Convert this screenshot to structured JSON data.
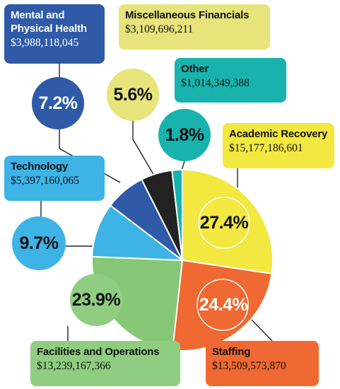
{
  "chart_data": {
    "type": "pie",
    "slices": [
      {
        "name": "Academic Recovery",
        "value": 15177186601,
        "amount": "$15,177,186,601",
        "percent": "27.4%",
        "color": "#f2e840"
      },
      {
        "name": "Staffing",
        "value": 13509573870,
        "amount": "$13,509,573,870",
        "percent": "24.4%",
        "color": "#f06832"
      },
      {
        "name": "Facilities and Operations",
        "value": 13239167366,
        "amount": "$13,239,167,366",
        "percent": "23.9%",
        "color": "#86c877"
      },
      {
        "name": "Technology",
        "value": 5397160065,
        "amount": "$5,397,160,065",
        "percent": "9.7%",
        "color": "#3db3e6"
      },
      {
        "name": "Mental and Physical Health",
        "value": 3988118045,
        "amount": "$3,988,118,045",
        "percent": "7.2%",
        "color": "#2e5aa8"
      },
      {
        "name": "Miscellaneous Financials",
        "value": 3109696211,
        "amount": "$3,109,696,211",
        "percent": "5.6%",
        "color": "#222222"
      },
      {
        "name": "Other",
        "value": 1014349388,
        "amount": "$1,014,349,388",
        "percent": "1.8%",
        "color": "#17b3ac"
      }
    ]
  },
  "labels": {
    "academic": {
      "name": "Academic Recovery",
      "amount": "$15,177,186,601",
      "percent": "27.4%"
    },
    "staffing": {
      "name": "Staffing",
      "amount": "$13,509,573,870",
      "percent": "24.4%"
    },
    "facilities": {
      "name": "Facilities and Operations",
      "amount": "$13,239,167,366",
      "percent": "23.9%"
    },
    "technology": {
      "name": "Technology",
      "amount": "$5,397,160,065",
      "percent": "9.7%"
    },
    "health": {
      "name": "Mental and",
      "name2": "Physical Health",
      "amount": "$3,988,118,045",
      "percent": "7.2%"
    },
    "misc": {
      "name": "Miscellaneous Financials",
      "amount": "$3,109,696,211",
      "percent": "5.6%"
    },
    "other": {
      "name": "Other",
      "amount": "$1,014,349,388",
      "percent": "1.8%"
    }
  },
  "colors": {
    "academic_box": "#f2e840",
    "staffing_box": "#f06832",
    "facilities_box": "#8fce80",
    "technology_box": "#3db3e6",
    "health_box": "#2e5aa8",
    "misc_box": "#e6e47a",
    "other_box": "#17b3ac"
  }
}
